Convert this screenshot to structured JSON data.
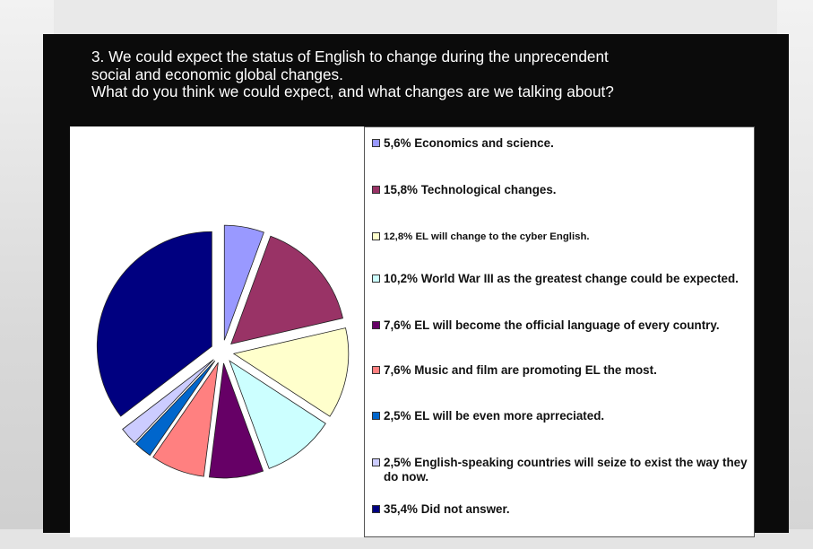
{
  "question": {
    "lines": [
      "3. We could expect the status of English to change during the unprecendent",
      "social and economic global changes.",
      "What do you think we could expect, and what changes are we talking about?"
    ]
  },
  "chart_data": {
    "type": "pie",
    "title": "",
    "legend_position": "right",
    "slices": [
      {
        "label": "5,6% Economics and science.",
        "value": 5.6,
        "color": "#9999ff"
      },
      {
        "label": "15,8% Technological changes.",
        "value": 15.8,
        "color": "#993366"
      },
      {
        "label": "12,8% EL will change to the cyber English.",
        "value": 12.8,
        "color": "#ffffcc"
      },
      {
        "label": "10,2% World War III as the greatest change could be expected.",
        "value": 10.2,
        "color": "#ccffff"
      },
      {
        "label": "7,6% EL will become the official language of every country.",
        "value": 7.6,
        "color": "#660066"
      },
      {
        "label": "7,6% Music and film are promoting EL the most.",
        "value": 7.6,
        "color": "#ff8080"
      },
      {
        "label": "2,5% EL will be even more aprreciated.",
        "value": 2.5,
        "color": "#0066cc"
      },
      {
        "label": "2,5% English-speaking countries will seize to exist the way they do now.",
        "value": 2.5,
        "color": "#ccccff"
      },
      {
        "label": "35,4% Did not answer.",
        "value": 35.4,
        "color": "#000080"
      }
    ]
  }
}
